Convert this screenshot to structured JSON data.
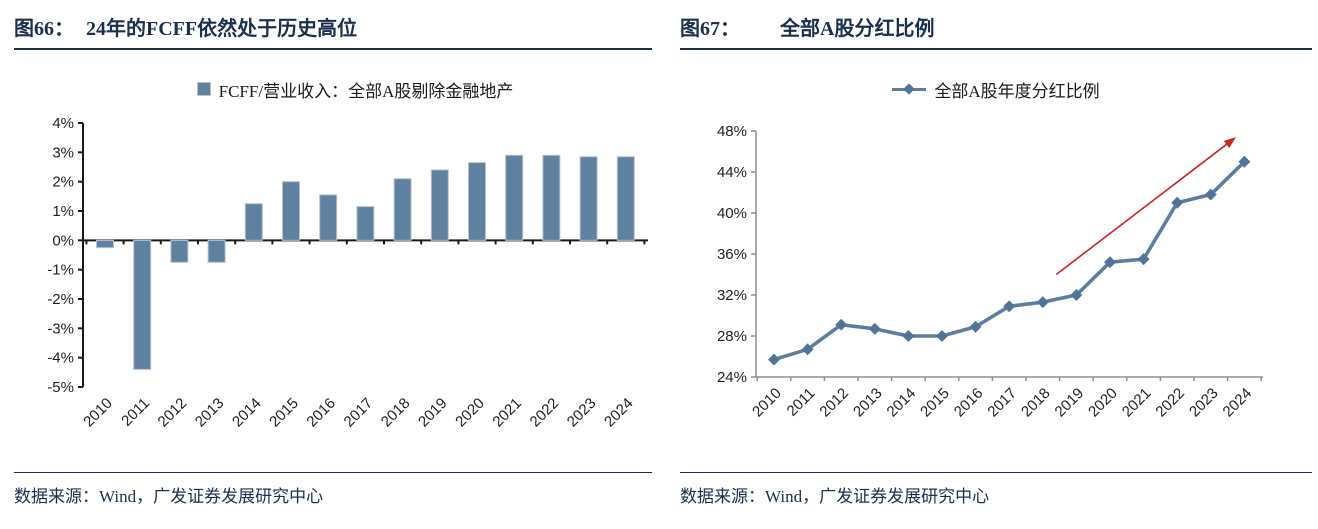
{
  "footer": {
    "text": "数据来源：Wind，广发证券发展研究中心"
  },
  "chart_data": [
    {
      "type": "bar",
      "figure_label": "图66：",
      "title": "24年的FCFF依然处于历史高位",
      "legend": "FCFF/营业收入：全部A股剔除金融地产",
      "categories": [
        "2010",
        "2011",
        "2012",
        "2013",
        "2014",
        "2015",
        "2016",
        "2017",
        "2018",
        "2019",
        "2020",
        "2021",
        "2022",
        "2023",
        "2024"
      ],
      "values": [
        -0.25,
        -4.4,
        -0.75,
        -0.75,
        1.25,
        2.0,
        1.55,
        1.15,
        2.1,
        2.4,
        2.65,
        2.9,
        2.9,
        2.85,
        2.85
      ],
      "ylim": [
        -5,
        4
      ],
      "yticks": [
        4,
        3,
        2,
        1,
        0,
        -1,
        -2,
        -3,
        -4,
        -5
      ],
      "ytick_suffix": "%",
      "xlabel": "",
      "ylabel": "",
      "grid": false,
      "legend_position": "top",
      "bar_color": "#60809f",
      "bar_border": "#b7c5d3",
      "axis_color": "#1a1a1a"
    },
    {
      "type": "line",
      "figure_label": "图67：",
      "title": "全部A股分红比例",
      "legend": "全部A股年度分红比例",
      "categories": [
        "2010",
        "2011",
        "2012",
        "2013",
        "2014",
        "2015",
        "2016",
        "2017",
        "2018",
        "2019",
        "2020",
        "2021",
        "2022",
        "2023",
        "2024"
      ],
      "values": [
        25.7,
        26.7,
        29.1,
        28.7,
        28.0,
        28.0,
        28.9,
        30.9,
        31.3,
        32.0,
        35.2,
        35.5,
        41.0,
        41.8,
        45.0
      ],
      "ylim": [
        24,
        48
      ],
      "yticks": [
        48,
        44,
        40,
        36,
        32,
        28,
        24
      ],
      "ytick_suffix": "%",
      "xlabel": "",
      "ylabel": "",
      "grid": false,
      "legend_position": "top",
      "line_color": "#5b7e9e",
      "marker": "diamond",
      "marker_color": "#50739a",
      "axis_color": "#8e8e8e",
      "annotation_arrow": {
        "from_index": 8.4,
        "from_value": 34.0,
        "to_index": 13.75,
        "to_value": 47.4,
        "color": "#cc2222"
      }
    }
  ]
}
